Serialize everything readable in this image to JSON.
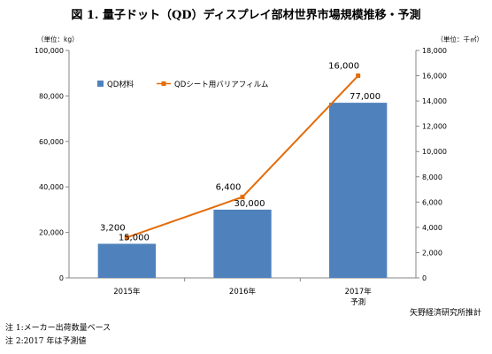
{
  "title": "図 1. 量子ドット（QD）ディスプレイ部材世界市場規模推移・予測",
  "left_unit": "（単位：kg）",
  "right_unit": "（単位：千㎡）",
  "source": "矢野経済研究所推計",
  "notes": [
    "注 1:メーカー出荷数量ベース",
    "注 2:2017 年は予測値"
  ],
  "colors": {
    "bar": "#4f81bd",
    "line": "#e46c0a",
    "axis": "#868686"
  },
  "chart_data": {
    "type": "bar",
    "categories": [
      "2015年",
      "2016年",
      "2017年"
    ],
    "category_sublabels": [
      "",
      "",
      "予測"
    ],
    "left_axis": {
      "ylim": [
        0,
        100000
      ],
      "ticks": [
        "0",
        "20,000",
        "40,000",
        "60,000",
        "80,000",
        "100,000"
      ]
    },
    "right_axis": {
      "ylim": [
        0,
        18000
      ],
      "ticks": [
        "0",
        "2,000",
        "4,000",
        "6,000",
        "8,000",
        "10,000",
        "12,000",
        "14,000",
        "16,000",
        "18,000"
      ]
    },
    "series": [
      {
        "name": "QD材料",
        "kind": "bar",
        "axis": "left",
        "values": [
          15000,
          30000,
          77000
        ],
        "labels": [
          "15,000",
          "30,000",
          "77,000"
        ]
      },
      {
        "name": "QDシート用バリアフィルム",
        "kind": "line",
        "axis": "right",
        "values": [
          3200,
          6400,
          16000
        ],
        "labels": [
          "3,200",
          "6,400",
          "16,000"
        ]
      }
    ],
    "legend_position": "top-left"
  }
}
